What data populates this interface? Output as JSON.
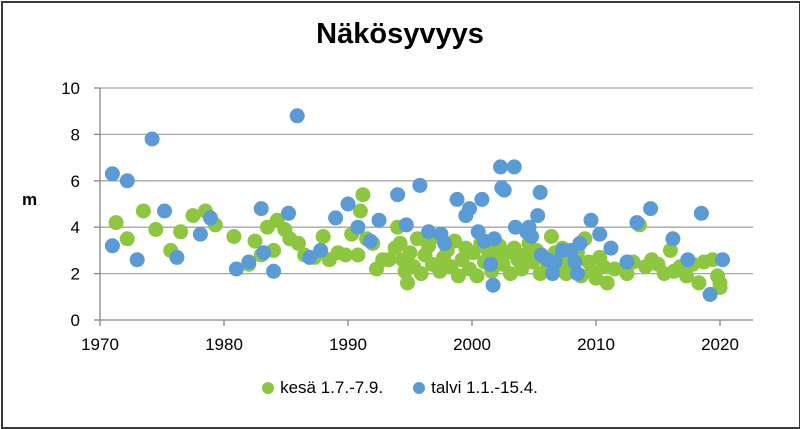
{
  "chart_data": {
    "type": "scatter",
    "title": "Näkösyvyys",
    "xlabel": "",
    "ylabel": "m",
    "xlim": [
      1970,
      2022.5
    ],
    "ylim": [
      0,
      10
    ],
    "x_ticks": [
      1970,
      1980,
      1990,
      2000,
      2010,
      2020
    ],
    "y_ticks": [
      0,
      2,
      4,
      6,
      8,
      10
    ],
    "grid": "horizontal",
    "legend_position": "bottom",
    "series": [
      {
        "name": "kesä 1.7.-7.9.",
        "color": "#8DC63F",
        "points": [
          [
            1971.3,
            4.2
          ],
          [
            1972.2,
            3.5
          ],
          [
            1973.5,
            4.7
          ],
          [
            1974.5,
            3.9
          ],
          [
            1975.7,
            3.0
          ],
          [
            1976.5,
            3.8
          ],
          [
            1977.5,
            4.5
          ],
          [
            1978.5,
            4.7
          ],
          [
            1979.3,
            4.1
          ],
          [
            1980.8,
            3.6
          ],
          [
            1982.0,
            2.4
          ],
          [
            1982.5,
            3.4
          ],
          [
            1983.0,
            2.8
          ],
          [
            1983.5,
            4.0
          ],
          [
            1984.0,
            3.0
          ],
          [
            1984.3,
            4.3
          ],
          [
            1984.9,
            3.9
          ],
          [
            1985.3,
            3.5
          ],
          [
            1986.0,
            3.3
          ],
          [
            1986.5,
            2.8
          ],
          [
            1987.3,
            2.7
          ],
          [
            1988.0,
            3.6
          ],
          [
            1988.5,
            2.6
          ],
          [
            1989.2,
            2.9
          ],
          [
            1989.8,
            2.8
          ],
          [
            1990.3,
            3.7
          ],
          [
            1990.8,
            2.8
          ],
          [
            1991.0,
            4.7
          ],
          [
            1991.2,
            5.4
          ],
          [
            1991.5,
            3.5
          ],
          [
            1992.0,
            3.3
          ],
          [
            1992.3,
            2.2
          ],
          [
            1992.8,
            2.6
          ],
          [
            1993.3,
            2.6
          ],
          [
            1993.8,
            3.1
          ],
          [
            1994.0,
            4.0
          ],
          [
            1994.2,
            3.3
          ],
          [
            1994.4,
            2.6
          ],
          [
            1994.6,
            2.1
          ],
          [
            1994.8,
            1.6
          ],
          [
            1995.0,
            2.9
          ],
          [
            1995.3,
            2.3
          ],
          [
            1995.6,
            3.5
          ],
          [
            1995.9,
            2.0
          ],
          [
            1996.2,
            2.8
          ],
          [
            1996.5,
            3.2
          ],
          [
            1996.8,
            2.4
          ],
          [
            1997.1,
            3.6
          ],
          [
            1997.4,
            2.1
          ],
          [
            1997.7,
            2.7
          ],
          [
            1998.0,
            3.0
          ],
          [
            1998.3,
            2.3
          ],
          [
            1998.6,
            3.4
          ],
          [
            1998.9,
            1.9
          ],
          [
            1999.2,
            2.6
          ],
          [
            1999.5,
            3.1
          ],
          [
            1999.8,
            2.2
          ],
          [
            2000.1,
            2.9
          ],
          [
            2000.4,
            1.9
          ],
          [
            2000.7,
            3.3
          ],
          [
            2001.0,
            2.5
          ],
          [
            2001.3,
            3.0
          ],
          [
            2001.6,
            2.1
          ],
          [
            2001.9,
            2.7
          ],
          [
            2002.2,
            3.2
          ],
          [
            2002.5,
            2.4
          ],
          [
            2002.8,
            2.9
          ],
          [
            2003.1,
            2.0
          ],
          [
            2003.4,
            3.1
          ],
          [
            2003.7,
            2.6
          ],
          [
            2004.0,
            2.2
          ],
          [
            2004.3,
            2.8
          ],
          [
            2004.6,
            3.3
          ],
          [
            2004.9,
            2.5
          ],
          [
            2005.2,
            3.0
          ],
          [
            2005.5,
            2.0
          ],
          [
            2005.8,
            2.7
          ],
          [
            2006.1,
            2.3
          ],
          [
            2006.4,
            3.6
          ],
          [
            2006.7,
            2.9
          ],
          [
            2007.0,
            2.4
          ],
          [
            2007.3,
            3.1
          ],
          [
            2007.6,
            2.0
          ],
          [
            2007.9,
            2.6
          ],
          [
            2008.2,
            2.2
          ],
          [
            2008.5,
            2.9
          ],
          [
            2008.8,
            1.9
          ],
          [
            2009.1,
            3.5
          ],
          [
            2009.4,
            2.5
          ],
          [
            2009.7,
            2.1
          ],
          [
            2010.0,
            1.8
          ],
          [
            2010.3,
            2.7
          ],
          [
            2010.6,
            2.3
          ],
          [
            2010.9,
            1.6
          ],
          [
            2011.5,
            2.2
          ],
          [
            2012.5,
            2.0
          ],
          [
            2013.0,
            2.5
          ],
          [
            2013.5,
            4.1
          ],
          [
            2014.0,
            2.3
          ],
          [
            2014.5,
            2.6
          ],
          [
            2015.0,
            2.4
          ],
          [
            2015.5,
            2.0
          ],
          [
            2016.0,
            3.0
          ],
          [
            2016.3,
            2.1
          ],
          [
            2016.8,
            2.3
          ],
          [
            2017.3,
            1.9
          ],
          [
            2017.8,
            2.4
          ],
          [
            2018.3,
            1.6
          ],
          [
            2018.7,
            2.5
          ],
          [
            2019.4,
            2.6
          ],
          [
            2019.8,
            1.9
          ],
          [
            2020.0,
            1.6
          ],
          [
            2020.0,
            1.4
          ]
        ]
      },
      {
        "name": "talvi 1.1.-15.4.",
        "color": "#5B9BD5",
        "points": [
          [
            1971.0,
            6.3
          ],
          [
            1971.0,
            3.2
          ],
          [
            1972.2,
            6.0
          ],
          [
            1973.0,
            2.6
          ],
          [
            1974.2,
            7.8
          ],
          [
            1975.2,
            4.7
          ],
          [
            1976.2,
            2.7
          ],
          [
            1978.1,
            3.7
          ],
          [
            1978.9,
            4.4
          ],
          [
            1981.0,
            2.2
          ],
          [
            1982.0,
            2.5
          ],
          [
            1983.0,
            4.8
          ],
          [
            1983.2,
            2.9
          ],
          [
            1984.0,
            2.1
          ],
          [
            1985.2,
            4.6
          ],
          [
            1985.9,
            8.8
          ],
          [
            1986.9,
            2.7
          ],
          [
            1987.8,
            3.0
          ],
          [
            1989.0,
            4.4
          ],
          [
            1990.0,
            5.0
          ],
          [
            1990.8,
            4.0
          ],
          [
            1991.8,
            3.4
          ],
          [
            1992.5,
            4.3
          ],
          [
            1994.0,
            5.4
          ],
          [
            1994.7,
            4.1
          ],
          [
            1995.8,
            5.8
          ],
          [
            1996.5,
            3.8
          ],
          [
            1997.5,
            3.7
          ],
          [
            1997.8,
            3.3
          ],
          [
            1998.8,
            5.2
          ],
          [
            1999.5,
            4.5
          ],
          [
            1999.8,
            4.8
          ],
          [
            2000.5,
            3.8
          ],
          [
            2000.8,
            5.2
          ],
          [
            2001.0,
            3.4
          ],
          [
            2001.5,
            2.4
          ],
          [
            2001.7,
            1.5
          ],
          [
            2001.8,
            3.5
          ],
          [
            2002.3,
            6.6
          ],
          [
            2002.4,
            5.7
          ],
          [
            2002.6,
            5.6
          ],
          [
            2003.4,
            6.6
          ],
          [
            2003.5,
            4.0
          ],
          [
            2004.4,
            3.8
          ],
          [
            2004.6,
            4.0
          ],
          [
            2004.8,
            3.6
          ],
          [
            2005.5,
            5.5
          ],
          [
            2005.3,
            4.5
          ],
          [
            2005.6,
            2.8
          ],
          [
            2006.1,
            2.6
          ],
          [
            2006.5,
            2.0
          ],
          [
            2006.7,
            2.5
          ],
          [
            2007.3,
            3.0
          ],
          [
            2008.0,
            3.0
          ],
          [
            2008.3,
            2.5
          ],
          [
            2008.5,
            2.0
          ],
          [
            2008.7,
            3.3
          ],
          [
            2009.6,
            4.3
          ],
          [
            2010.3,
            3.7
          ],
          [
            2011.2,
            3.1
          ],
          [
            2012.5,
            2.5
          ],
          [
            2013.3,
            4.2
          ],
          [
            2014.4,
            4.8
          ],
          [
            2016.2,
            3.5
          ],
          [
            2017.4,
            2.6
          ],
          [
            2018.5,
            4.6
          ],
          [
            2019.2,
            1.1
          ],
          [
            2020.2,
            2.6
          ]
        ]
      }
    ]
  },
  "title": "Näkösyvyys",
  "y_axis": {
    "label": "m",
    "ticks": [
      "0",
      "2",
      "4",
      "6",
      "8",
      "10"
    ]
  },
  "x_axis": {
    "ticks": [
      "1970",
      "1980",
      "1990",
      "2000",
      "2010",
      "2020"
    ]
  },
  "legend": {
    "items": [
      {
        "label": "kesä 1.7.-7.9.",
        "color": "#8DC63F"
      },
      {
        "label": "talvi 1.1.-15.4.",
        "color": "#5B9BD5"
      }
    ]
  },
  "colors": {
    "grid": "#A6A6A6",
    "axis": "#868686",
    "border": "#3a3a3a"
  }
}
